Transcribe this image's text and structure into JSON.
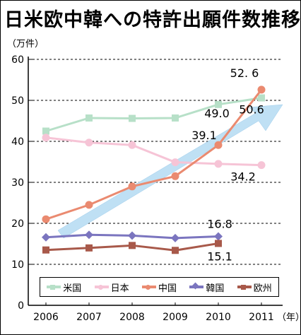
{
  "title": "日米欧中韓への特許出願件数推移",
  "chart_data": {
    "type": "line",
    "ylabel": "（万件）",
    "x_unit": "（年）",
    "categories": [
      "2006",
      "2007",
      "2008",
      "2009",
      "2010",
      "2011"
    ],
    "ylim": [
      0,
      60
    ],
    "yticks": [
      0,
      10,
      20,
      30,
      40,
      50,
      60
    ],
    "grid": "horizontal dashed",
    "legend_position": "bottom",
    "series": [
      {
        "name": "米国",
        "color": "#b7e0c8",
        "marker": "square",
        "values": [
          42.5,
          45.7,
          45.6,
          45.7,
          49.0,
          50.6
        ]
      },
      {
        "name": "日本",
        "color": "#f6c4d6",
        "marker": "circle",
        "values": [
          40.9,
          39.7,
          39.1,
          34.9,
          34.5,
          34.2
        ]
      },
      {
        "name": "中国",
        "color": "#ea8a70",
        "marker": "circle",
        "values": [
          21.0,
          24.5,
          29.0,
          31.5,
          39.1,
          52.6
        ]
      },
      {
        "name": "韓国",
        "color": "#7b75bf",
        "marker": "diamond",
        "values": [
          16.6,
          17.2,
          17.0,
          16.4,
          16.8,
          null
        ]
      },
      {
        "name": "欧州",
        "color": "#a8594a",
        "marker": "square",
        "values": [
          13.5,
          14.0,
          14.6,
          13.4,
          15.1,
          null
        ]
      }
    ],
    "annotations": [
      {
        "text": "52. 6",
        "x": "2011",
        "y": 52.6
      },
      {
        "text": "50.6",
        "x": "2011",
        "y": 50.6
      },
      {
        "text": "49.0",
        "x": "2010",
        "y": 49.0
      },
      {
        "text": "39.1",
        "x": "2010",
        "y": 39.1
      },
      {
        "text": "34.2",
        "x": "2011",
        "y": 34.2
      },
      {
        "text": "16.8",
        "x": "2010",
        "y": 16.8
      },
      {
        "text": "15.1",
        "x": "2010",
        "y": 15.1
      }
    ],
    "arrow_color": "#bfe0f4"
  }
}
